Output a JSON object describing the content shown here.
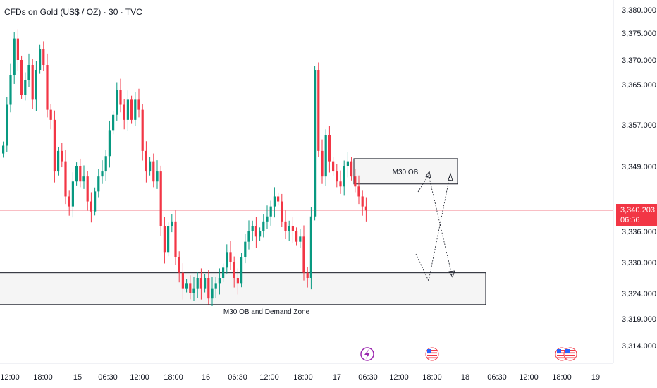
{
  "title": "CFDs on Gold (US$ / OZ) · 30 · TVC",
  "price_tag": {
    "price": "3,340.203",
    "countdown": "06:56"
  },
  "colors": {
    "up": "#089981",
    "down": "#f23645",
    "price_line": "#f7a9b0",
    "zone_fill": "#f5f5f5",
    "zone_stroke": "#131722"
  },
  "icons": [
    "lightning-event-icon",
    "us-flag-event-icon",
    "us-flag-event-icon"
  ],
  "chart_data": {
    "type": "candlestick",
    "title": "CFDs on Gold (US$ / OZ) · 30 · TVC",
    "y_ticks": [
      "3,380.000",
      "3,375.000",
      "3,370.000",
      "3,365.000",
      "3,357.000",
      "3,349.000",
      "3,336.000",
      "3,330.000",
      "3,324.000",
      "3,319.000",
      "3,314.000"
    ],
    "y_tick_values": [
      3380,
      3375,
      3370,
      3365,
      3357,
      3349,
      3336,
      3330,
      3324,
      3319,
      3314
    ],
    "x_ticks": [
      "12:00",
      "18:00",
      "15",
      "06:30",
      "12:00",
      "18:00",
      "16",
      "06:30",
      "12:00",
      "18:00",
      "17",
      "06:30",
      "12:00",
      "18:00",
      "18",
      "06:30",
      "12:00",
      "18:00",
      "19"
    ],
    "last_price": 3340.203,
    "annotations": [
      {
        "label": "M30 OB",
        "y_range": [
          3345.5,
          3350.5
        ]
      },
      {
        "label": "M30 OB and Demand Zone",
        "y_range": [
          3321.8,
          3328.0
        ]
      }
    ],
    "series": [
      {
        "close_path": [
          3353,
          3361,
          3367,
          3374,
          3370,
          3363,
          3366,
          3369,
          3362,
          3368,
          3372,
          3369,
          3360,
          3358,
          3348,
          3352,
          3350,
          3343,
          3341,
          3346,
          3349,
          3346,
          3347,
          3342,
          3340,
          3344,
          3347,
          3348,
          3351,
          3356,
          3359,
          3364,
          3361,
          3358,
          3362,
          3358,
          3362,
          3360,
          3352,
          3348,
          3350,
          3346,
          3348,
          3337,
          3332,
          3337,
          3338,
          3331,
          3328,
          3325,
          3326,
          3324,
          3325,
          3327,
          3325,
          3327,
          3323,
          3325,
          3326,
          3327,
          3329,
          3332,
          3330,
          3327,
          3326,
          3331,
          3334,
          3336,
          3337,
          3335,
          3336,
          3338,
          3339,
          3341,
          3343,
          3342,
          3338,
          3336,
          3337,
          3336,
          3334,
          3335,
          3328,
          3327,
          3339,
          3368,
          3352,
          3347,
          3355,
          3350,
          3348,
          3346,
          3345,
          3349,
          3350,
          3347,
          3345,
          3343,
          3341,
          3340.2
        ]
      }
    ]
  }
}
